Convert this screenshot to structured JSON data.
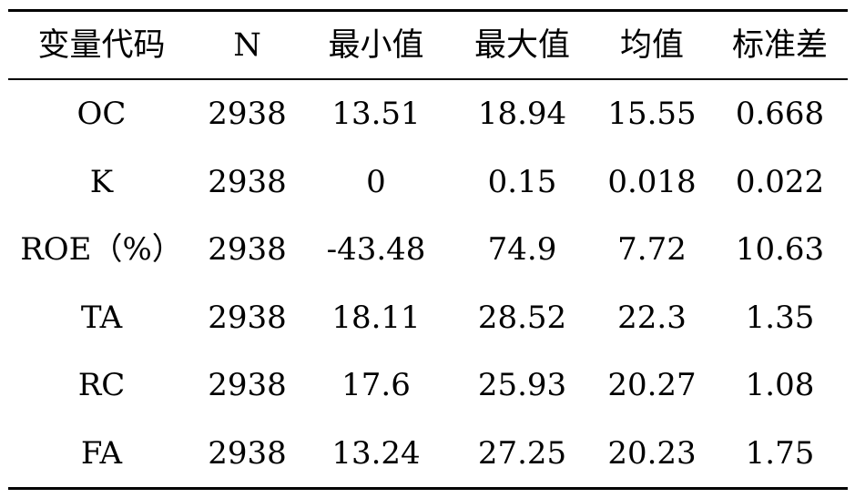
{
  "table": {
    "headers": [
      "变量代码",
      "N",
      "最小值",
      "最大值",
      "均值",
      "标准差"
    ],
    "rows": [
      [
        "OC",
        "2938",
        "13.51",
        "18.94",
        "15.55",
        "0.668"
      ],
      [
        "K",
        "2938",
        "0",
        "0.15",
        "0.018",
        "0.022"
      ],
      [
        "ROE（%）",
        "2938",
        "-43.48",
        "74.9",
        "7.72",
        "10.63"
      ],
      [
        "TA",
        "2938",
        "18.11",
        "28.52",
        "22.3",
        "1.35"
      ],
      [
        "RC",
        "2938",
        "17.6",
        "25.93",
        "20.27",
        "1.08"
      ],
      [
        "FA",
        "2938",
        "13.24",
        "27.25",
        "20.23",
        "1.75"
      ]
    ]
  }
}
